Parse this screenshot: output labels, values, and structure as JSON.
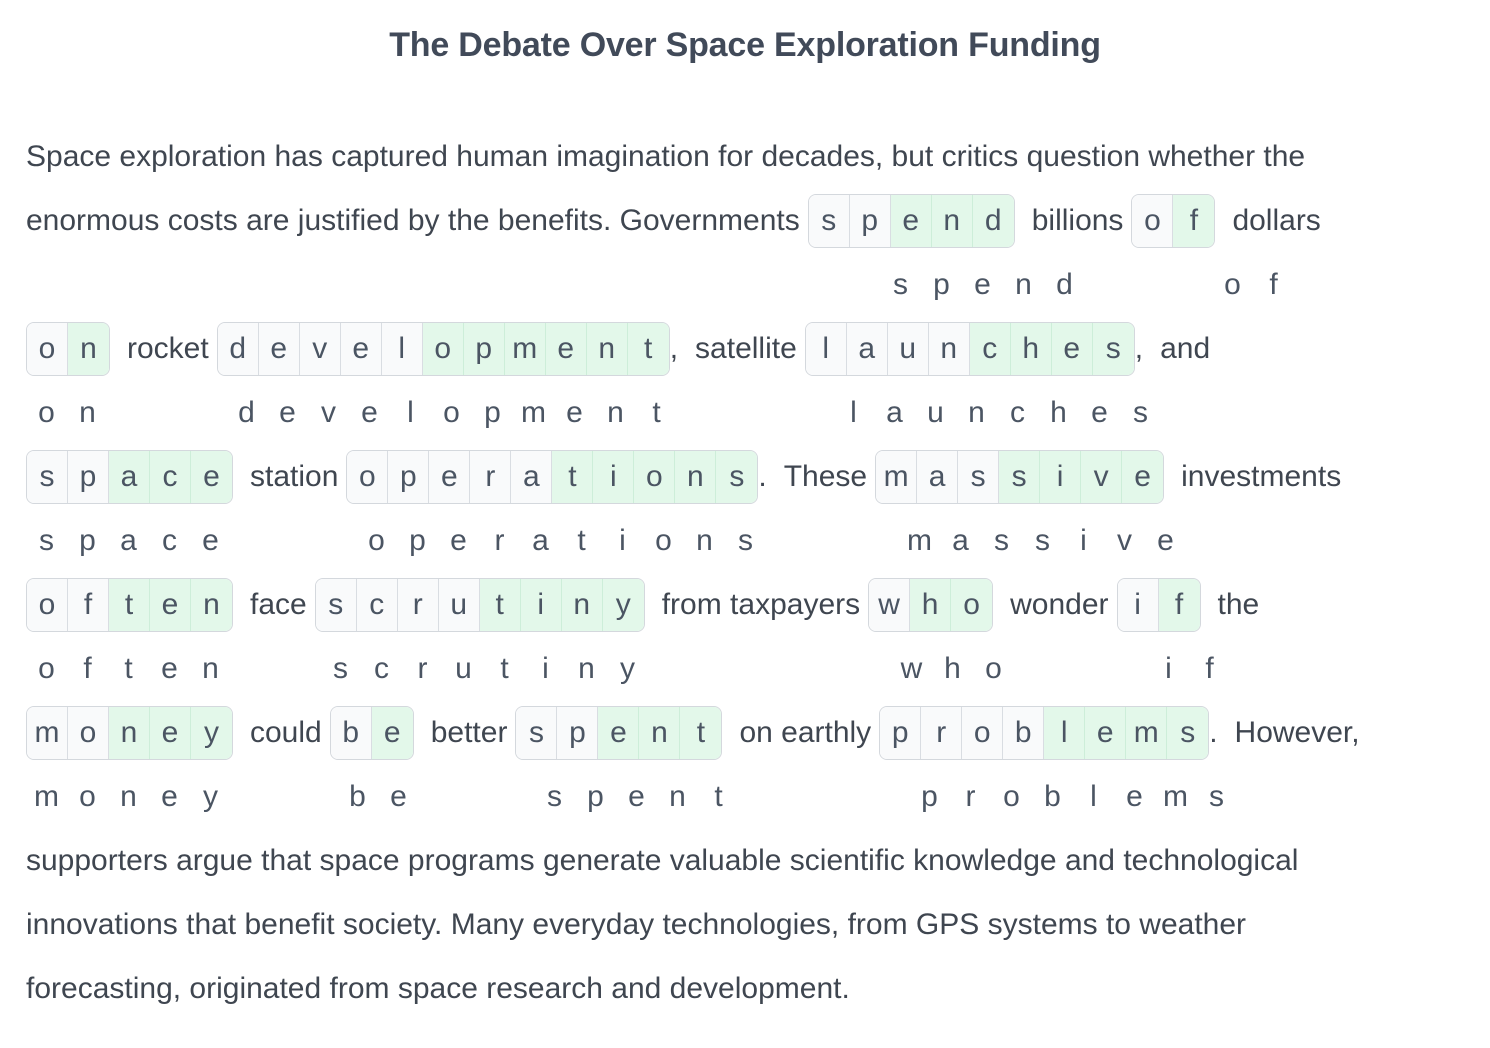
{
  "title": "The Debate Over Space Exploration Funding",
  "paragraph_start": {
    "line1": "Space exploration has captured human imagination for decades, but critics question whether the",
    "line2_lead": "enormous costs are justified by the benefits. Governments"
  },
  "filler": {
    "billions": "billions",
    "dollars": "dollars",
    "rocket": "rocket",
    "comma1": ",",
    "satellite": "satellite",
    "comma2": ",",
    "and": "and",
    "station": "station",
    "period1": ".",
    "these": "These",
    "investments": "investments",
    "face": "face",
    "from_taxpayers": "from taxpayers",
    "wonder": "wonder",
    "the": "the",
    "could": "could",
    "better": "better",
    "on_earthly": "on earthly",
    "period2": ".",
    "however": "However,"
  },
  "paragraph_end": {
    "line1": "supporters argue that space programs generate valuable scientific knowledge and technological",
    "line2": "innovations that benefit society. Many everyday technologies, from GPS systems to weather",
    "line3": "forecasting, originated from space research and development."
  },
  "puzzle_words": [
    {
      "word": "spend",
      "letters": [
        "s",
        "p",
        "e",
        "n",
        "d"
      ],
      "highlighted": [
        false,
        false,
        true,
        true,
        true
      ]
    },
    {
      "word": "of",
      "letters": [
        "o",
        "f"
      ],
      "highlighted": [
        false,
        true
      ]
    },
    {
      "word": "on",
      "letters": [
        "o",
        "n"
      ],
      "highlighted": [
        false,
        true
      ]
    },
    {
      "word": "development",
      "letters": [
        "d",
        "e",
        "v",
        "e",
        "l",
        "o",
        "p",
        "m",
        "e",
        "n",
        "t"
      ],
      "highlighted": [
        false,
        false,
        false,
        false,
        false,
        true,
        true,
        true,
        true,
        true,
        true
      ]
    },
    {
      "word": "launches",
      "letters": [
        "l",
        "a",
        "u",
        "n",
        "c",
        "h",
        "e",
        "s"
      ],
      "highlighted": [
        false,
        false,
        false,
        false,
        true,
        true,
        true,
        true
      ]
    },
    {
      "word": "space",
      "letters": [
        "s",
        "p",
        "a",
        "c",
        "e"
      ],
      "highlighted": [
        false,
        false,
        true,
        true,
        true
      ]
    },
    {
      "word": "operations",
      "letters": [
        "o",
        "p",
        "e",
        "r",
        "a",
        "t",
        "i",
        "o",
        "n",
        "s"
      ],
      "highlighted": [
        false,
        false,
        false,
        false,
        false,
        true,
        true,
        true,
        true,
        true
      ]
    },
    {
      "word": "massive",
      "letters": [
        "m",
        "a",
        "s",
        "s",
        "i",
        "v",
        "e"
      ],
      "highlighted": [
        false,
        false,
        false,
        true,
        true,
        true,
        true
      ]
    },
    {
      "word": "often",
      "letters": [
        "o",
        "f",
        "t",
        "e",
        "n"
      ],
      "highlighted": [
        false,
        false,
        true,
        true,
        true
      ]
    },
    {
      "word": "scrutiny",
      "letters": [
        "s",
        "c",
        "r",
        "u",
        "t",
        "i",
        "n",
        "y"
      ],
      "highlighted": [
        false,
        false,
        false,
        false,
        true,
        true,
        true,
        true
      ]
    },
    {
      "word": "who",
      "letters": [
        "w",
        "h",
        "o"
      ],
      "highlighted": [
        false,
        true,
        true
      ]
    },
    {
      "word": "if",
      "letters": [
        "i",
        "f"
      ],
      "highlighted": [
        false,
        true
      ]
    },
    {
      "word": "money",
      "letters": [
        "m",
        "o",
        "n",
        "e",
        "y"
      ],
      "highlighted": [
        false,
        false,
        true,
        true,
        true
      ]
    },
    {
      "word": "be",
      "letters": [
        "b",
        "e"
      ],
      "highlighted": [
        false,
        true
      ]
    },
    {
      "word": "spent",
      "letters": [
        "s",
        "p",
        "e",
        "n",
        "t"
      ],
      "highlighted": [
        false,
        false,
        true,
        true,
        true
      ]
    },
    {
      "word": "problems",
      "letters": [
        "p",
        "r",
        "o",
        "b",
        "l",
        "e",
        "m",
        "s"
      ],
      "highlighted": [
        false,
        false,
        false,
        false,
        true,
        true,
        true,
        true
      ]
    }
  ],
  "colors": {
    "title": "#414a59",
    "text": "#3f4650",
    "cell_plain": "#f9fafb",
    "cell_highlight": "#e3f8ea",
    "cell_border": "#d4d8dd"
  }
}
